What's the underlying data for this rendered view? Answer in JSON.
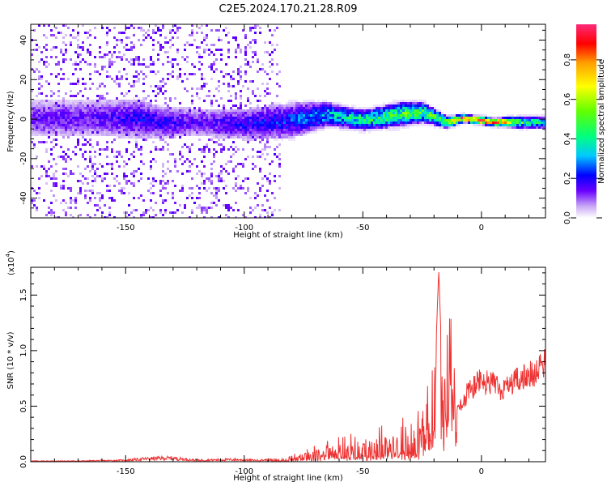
{
  "title": "C2E5.2024.170.21.28.R09",
  "chart_data": [
    {
      "type": "heatmap",
      "xlabel": "Height of straight line (km)",
      "ylabel": "Frequency (Hz)",
      "xlim": [
        -190,
        27
      ],
      "ylim": [
        -50,
        48
      ],
      "xticks": [
        -150,
        -100,
        -50,
        0
      ],
      "yticks": [
        -40,
        -20,
        0,
        20,
        40
      ],
      "colorbar": {
        "label": "Normalized spectral amplitude",
        "range": [
          0,
          0.98
        ],
        "ticks": [
          "0.0",
          "0.2",
          "0.4",
          "0.6",
          "0.8"
        ],
        "colormap": [
          "#ffffff",
          "#c9a8f5",
          "#6a00ff",
          "#0000ff",
          "#00c8ff",
          "#00ff80",
          "#60ff00",
          "#ffff00",
          "#ffa000",
          "#ff0000",
          "#ff2a7a"
        ]
      },
      "ridge": [
        {
          "x": -165,
          "f": 1,
          "halfwidth": 9,
          "amp": 0.15
        },
        {
          "x": -145,
          "f": 1,
          "halfwidth": 10,
          "amp": 0.2
        },
        {
          "x": -135,
          "f": -1,
          "halfwidth": 8,
          "amp": 0.2
        },
        {
          "x": -120,
          "f": -1,
          "halfwidth": 7,
          "amp": 0.15
        },
        {
          "x": -100,
          "f": -2,
          "halfwidth": 8,
          "amp": 0.2
        },
        {
          "x": -80,
          "f": 0,
          "halfwidth": 9,
          "amp": 0.25
        },
        {
          "x": -65,
          "f": 3,
          "halfwidth": 6,
          "amp": 0.35
        },
        {
          "x": -50,
          "f": 0,
          "halfwidth": 5,
          "amp": 0.45
        },
        {
          "x": -35,
          "f": 3,
          "halfwidth": 6,
          "amp": 0.5
        },
        {
          "x": -25,
          "f": 4,
          "halfwidth": 5,
          "amp": 0.5
        },
        {
          "x": -15,
          "f": -1,
          "halfwidth": 3,
          "amp": 0.55
        },
        {
          "x": -8,
          "f": 1,
          "halfwidth": 2,
          "amp": 0.95
        },
        {
          "x": 5,
          "f": -1,
          "halfwidth": 2,
          "amp": 0.9
        },
        {
          "x": 15,
          "f": -1,
          "halfwidth": 3,
          "amp": 0.5
        },
        {
          "x": 26,
          "f": -1,
          "halfwidth": 3,
          "amp": 0.4
        }
      ]
    },
    {
      "type": "line",
      "xlabel": "Height of straight line (km)",
      "ylabel": "SNR (10 * v/v)",
      "y_multiplier_label": "(x10",
      "y_multiplier_exponent": "4",
      "y_multiplier_close": ")",
      "xlim": [
        -190,
        27
      ],
      "ylim": [
        0,
        1.75
      ],
      "xticks": [
        -150,
        -100,
        -50,
        0
      ],
      "yticks": [
        "0.0",
        "0.5",
        "1.0",
        "1.5"
      ],
      "ytick_values": [
        0,
        0.5,
        1.0,
        1.5
      ],
      "color": "#ee3333",
      "series": [
        {
          "x": [
            -190,
            -170,
            -150,
            -142,
            -135,
            -130,
            -120,
            -105,
            -95,
            -85,
            -80,
            -75,
            -70,
            -65,
            -60,
            -55,
            -50,
            -45,
            -40,
            -35,
            -30,
            -25,
            -22,
            -20,
            -19,
            -18,
            -17,
            -16,
            -15,
            -13,
            -12,
            -10,
            -5,
            0,
            5,
            10,
            15,
            20,
            25,
            27
          ],
          "y": [
            0.01,
            0.01,
            0.02,
            0.04,
            0.05,
            0.05,
            0.02,
            0.03,
            0.02,
            0.03,
            0.05,
            0.08,
            0.12,
            0.15,
            0.18,
            0.2,
            0.2,
            0.25,
            0.28,
            0.3,
            0.35,
            0.45,
            0.6,
            0.8,
            1.15,
            1.72,
            1.1,
            0.55,
            0.8,
            1.3,
            0.8,
            0.55,
            0.75,
            0.85,
            0.8,
            0.75,
            0.85,
            0.9,
            0.98,
            1.04
          ]
        }
      ]
    }
  ]
}
